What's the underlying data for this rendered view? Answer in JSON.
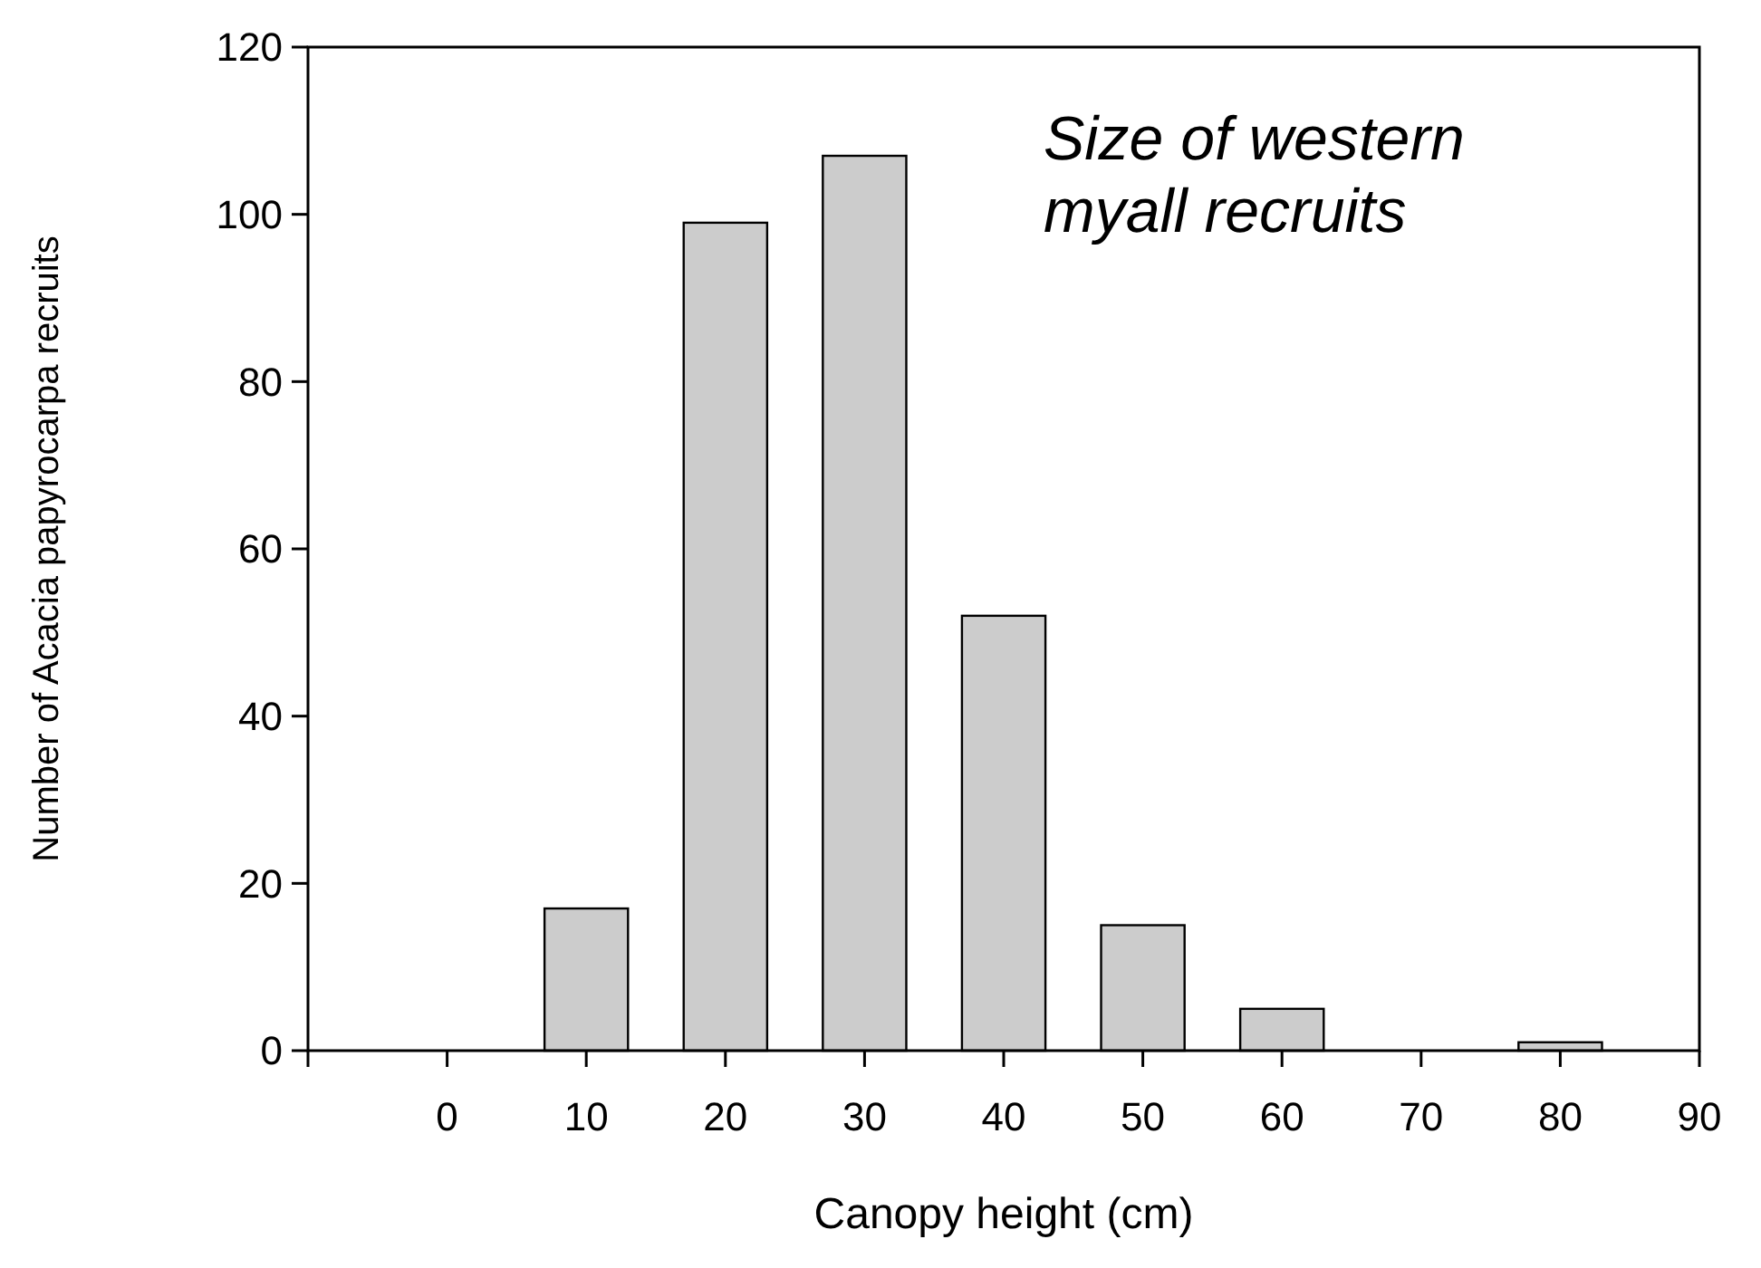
{
  "chart_data": {
    "type": "bar",
    "title": "Size of western myall recruits",
    "xlabel": "Canopy height (cm)",
    "ylabel": "Number of Acacia papyrocarpa recruits",
    "x": [
      0,
      10,
      20,
      30,
      40,
      50,
      60,
      70,
      80
    ],
    "values": [
      0,
      17,
      99,
      107,
      52,
      15,
      5,
      0,
      1
    ],
    "color": "#cccccc",
    "xlim": [
      -10,
      90
    ],
    "xticks": [
      {
        "value": -10,
        "label": null
      },
      0,
      10,
      20,
      30,
      40,
      50,
      60,
      70,
      80,
      90
    ],
    "ylim": [
      0,
      120
    ],
    "yticks": [
      0,
      20,
      40,
      60,
      80,
      100,
      120
    ]
  }
}
